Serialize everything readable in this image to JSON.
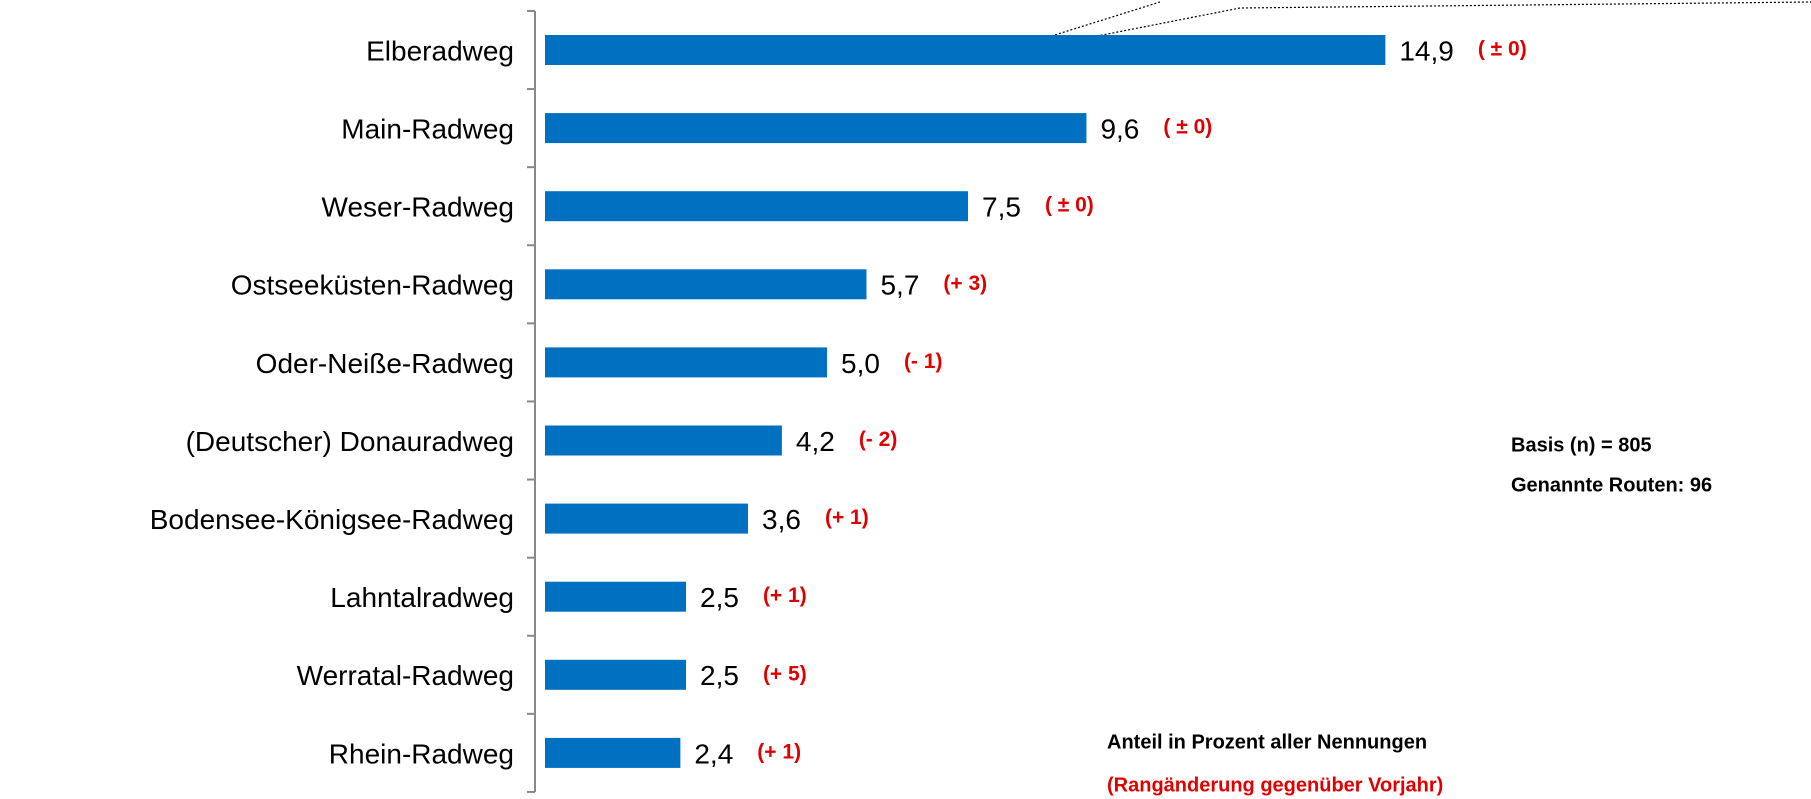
{
  "chart_data": {
    "type": "bar",
    "orientation": "horizontal",
    "color": "#0070c0",
    "categories": [
      "Elberadweg",
      "Main-Radweg",
      "Weser-Radweg",
      "Ostseeküsten-Radweg",
      "Oder-Neiße-Radweg",
      "(Deutscher) Donauradweg",
      "Bodensee-Königsee-Radweg",
      "Lahntalradweg",
      "Werratal-Radweg",
      "Rhein-Radweg"
    ],
    "values": [
      14.9,
      9.6,
      7.5,
      5.7,
      5.0,
      4.2,
      3.6,
      2.5,
      2.5,
      2.4
    ],
    "value_labels": [
      "14,9",
      "9,6",
      "7,5",
      "5,7",
      "5,0",
      "4,2",
      "3,6",
      "2,5",
      "2,5",
      "2,4"
    ],
    "rank_changes": [
      "( ± 0)",
      "( ± 0)",
      "( ± 0)",
      "(+ 3)",
      "(- 1)",
      "(- 2)",
      "(+ 1)",
      "(+ 1)",
      "(+ 5)",
      "(+ 1)"
    ],
    "annotations": [
      "Basis (n) = 805",
      "Genannte Routen: 96",
      "Anteil in Prozent aller Nennungen",
      "(Rangänderung gegenüber Vorjahr)"
    ]
  }
}
